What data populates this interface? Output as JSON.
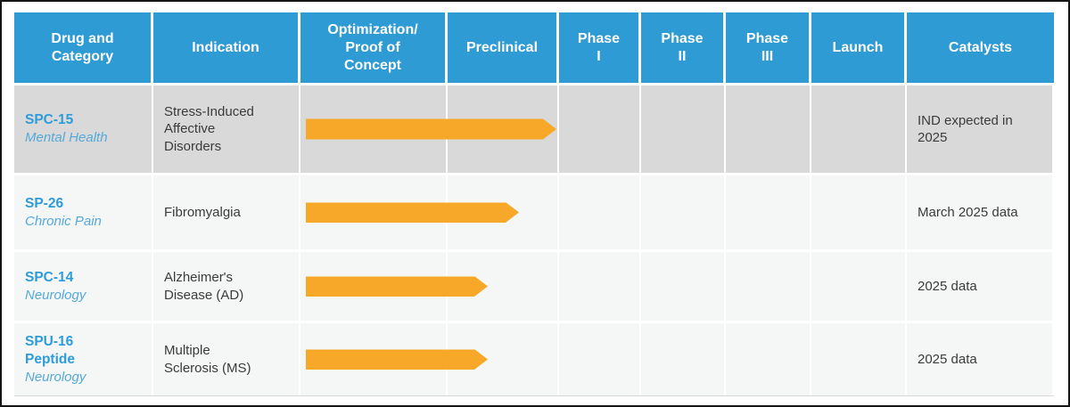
{
  "colors": {
    "header_bg": "#2E9BD5",
    "header_text": "#FFFFFF",
    "drug_name": "#2D9CDB",
    "category_text": "#55A9D8",
    "arrow": "#F7A828",
    "row_gray_bg": "#D9D9D9",
    "row_light_bg": "#F5F6F6",
    "body_text": "#3B3B3B"
  },
  "table": {
    "columns": [
      "Drug and\nCategory",
      "Indication",
      "Optimization/\nProof of\nConcept",
      "Preclinical",
      "Phase\nI",
      "Phase\nII",
      "Phase\nIII",
      "Launch",
      "Catalysts"
    ],
    "rows": [
      {
        "drug_name": "SPC-15",
        "drug_name_line2": "",
        "category": "Mental Health",
        "indication": "Stress-Induced Affective Disorders",
        "catalyst": "IND expected in 2025"
      },
      {
        "drug_name": "SP-26",
        "drug_name_line2": "",
        "category": "Chronic Pain",
        "indication": "Fibromyalgia",
        "catalyst": "March 2025 data"
      },
      {
        "drug_name": "SPC-14",
        "drug_name_line2": "",
        "category": "Neurology",
        "indication": "Alzheimer's Disease (AD)",
        "catalyst": "2025 data"
      },
      {
        "drug_name": "SPU-16",
        "drug_name_line2": "Peptide",
        "category": "Neurology",
        "indication": "Multiple Sclerosis (MS)",
        "catalyst": "2025 data"
      }
    ]
  },
  "chart_data": {
    "type": "table",
    "title": "Drug development pipeline",
    "columns": [
      "Drug and Category",
      "Indication",
      "Optimization/Proof of Concept",
      "Preclinical",
      "Phase I",
      "Phase II",
      "Phase III",
      "Launch",
      "Catalysts"
    ],
    "rows": [
      {
        "drug": "SPC-15",
        "category": "Mental Health",
        "indication": "Stress-Induced Affective Disorders",
        "progress_start": "Optimization/Proof of Concept",
        "progress_end": "Preclinical (end)",
        "catalysts": "IND expected in 2025"
      },
      {
        "drug": "SP-26",
        "category": "Chronic Pain",
        "indication": "Fibromyalgia",
        "progress_start": "Optimization/Proof of Concept",
        "progress_end": "Preclinical (mid)",
        "catalysts": "March 2025 data"
      },
      {
        "drug": "SPC-14",
        "category": "Neurology",
        "indication": "Alzheimer's Disease (AD)",
        "progress_start": "Optimization/Proof of Concept",
        "progress_end": "Preclinical (early)",
        "catalysts": "2025 data"
      },
      {
        "drug": "SPU-16 Peptide",
        "category": "Neurology",
        "indication": "Multiple Sclerosis (MS)",
        "progress_start": "Optimization/Proof of Concept",
        "progress_end": "Preclinical (early)",
        "catalysts": "2025 data"
      }
    ],
    "bar_style": "orange right-pointing arrow",
    "legend": "none"
  }
}
